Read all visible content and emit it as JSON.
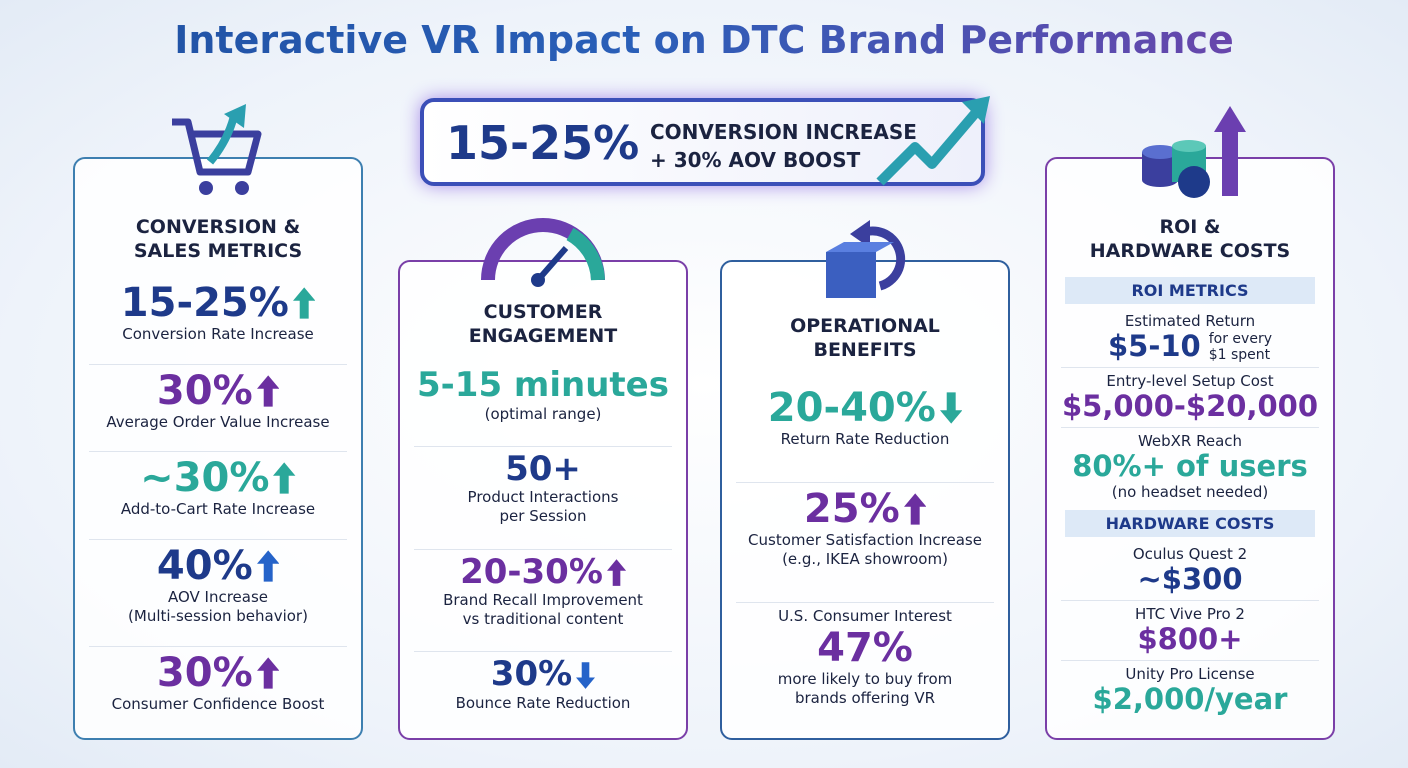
{
  "title": "Interactive VR Impact on DTC Brand Performance",
  "banner": {
    "value": "15-25%",
    "line1": "CONVERSION INCREASE",
    "line2": "+ 30% AOV BOOST"
  },
  "cards": [
    {
      "title": [
        "CONVERSION &",
        "SALES METRICS"
      ],
      "border": "#3d7fb0",
      "metrics": [
        {
          "value": "15-25%",
          "label": [
            "Conversion Rate Increase"
          ],
          "color": "#1e3a8a",
          "arrow": "up",
          "arrow_color": "#2aa89a"
        },
        {
          "value": "30%",
          "label": [
            "Average Order Value Increase"
          ],
          "color": "#6b2fa0",
          "arrow": "up",
          "arrow_color": "#6b2fa0"
        },
        {
          "value": "~30%",
          "label": [
            "Add-to-Cart Rate Increase"
          ],
          "color": "#2aa89a",
          "arrow": "up",
          "arrow_color": "#2aa89a"
        },
        {
          "value": "40%",
          "label": [
            "AOV Increase",
            "(Multi-session behavior)"
          ],
          "color": "#1e3a8a",
          "arrow": "up",
          "arrow_color": "#2563c9"
        },
        {
          "value": "30%",
          "label": [
            "Consumer Confidence Boost"
          ],
          "color": "#6b2fa0",
          "arrow": "up",
          "arrow_color": "#6b2fa0"
        }
      ]
    },
    {
      "title": [
        "CUSTOMER",
        "ENGAGEMENT"
      ],
      "border": "#7a3fa8",
      "metrics": [
        {
          "value": "5-15 minutes",
          "label": [
            "(optimal range)"
          ],
          "color": "#2aa89a"
        },
        {
          "value": "50+",
          "label": [
            "Product Interactions",
            "per Session"
          ],
          "color": "#1e3a8a"
        },
        {
          "value": "20-30%",
          "label": [
            "Brand Recall Improvement",
            "vs traditional content"
          ],
          "color": "#6b2fa0",
          "arrow": "up",
          "arrow_color": "#6b2fa0"
        },
        {
          "value": "30%",
          "label": [
            "Bounce Rate Reduction"
          ],
          "color": "#1e3a8a",
          "arrow": "down",
          "arrow_color": "#2563c9"
        }
      ]
    },
    {
      "title": [
        "OPERATIONAL",
        "BENEFITS"
      ],
      "border": "#2f5f9e",
      "metrics": [
        {
          "value": "20-40%",
          "label": [
            "Return Rate Reduction"
          ],
          "color": "#2aa89a",
          "arrow": "down",
          "arrow_color": "#2aa89a"
        },
        {
          "value": "25%",
          "label": [
            "Customer Satisfaction Increase",
            "(e.g., IKEA showroom)"
          ],
          "color": "#6b2fa0",
          "arrow": "up",
          "arrow_color": "#6b2fa0"
        },
        {
          "heading": "U.S. Consumer Interest",
          "value": "47%",
          "label": [
            "more likely to buy from",
            "brands offering VR"
          ],
          "color": "#6b2fa0"
        }
      ]
    },
    {
      "title": [
        "ROI &",
        "HARDWARE COSTS"
      ],
      "border": "#7a3fa8",
      "sections": [
        {
          "title": "ROI METRICS",
          "items": [
            {
              "heading": "Estimated Return",
              "value": "$5-10",
              "side": [
                "for every",
                "$1 spent"
              ],
              "color": "#1e3a8a"
            },
            {
              "heading": "Entry-level Setup Cost",
              "value": "$5,000-$20,000",
              "color": "#6b2fa0"
            },
            {
              "heading": "WebXR Reach",
              "value": "80%+ of users",
              "label": [
                "(no headset needed)"
              ],
              "color": "#2aa89a"
            }
          ]
        },
        {
          "title": "HARDWARE COSTS",
          "items": [
            {
              "heading": "Oculus Quest 2",
              "value": "~$300",
              "color": "#1e3a8a"
            },
            {
              "heading": "HTC Vive Pro 2",
              "value": "$800+",
              "color": "#6b2fa0"
            },
            {
              "heading": "Unity Pro License",
              "value": "$2,000/year",
              "color": "#2aa89a"
            }
          ]
        }
      ]
    }
  ]
}
